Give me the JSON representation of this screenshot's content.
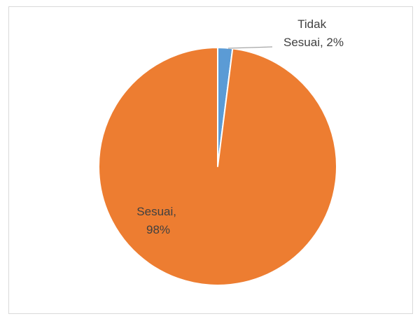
{
  "chart_data": {
    "type": "pie",
    "title": "",
    "categories": [
      "Tidak Sesuai",
      "Sesuai"
    ],
    "values": [
      2,
      98
    ],
    "data_labels": [
      [
        "Tidak",
        "Sesuai, 2%"
      ],
      [
        "Sesuai,",
        "98%"
      ]
    ],
    "colors": [
      "#5b9bd5",
      "#ed7d31"
    ],
    "legend": "none"
  }
}
